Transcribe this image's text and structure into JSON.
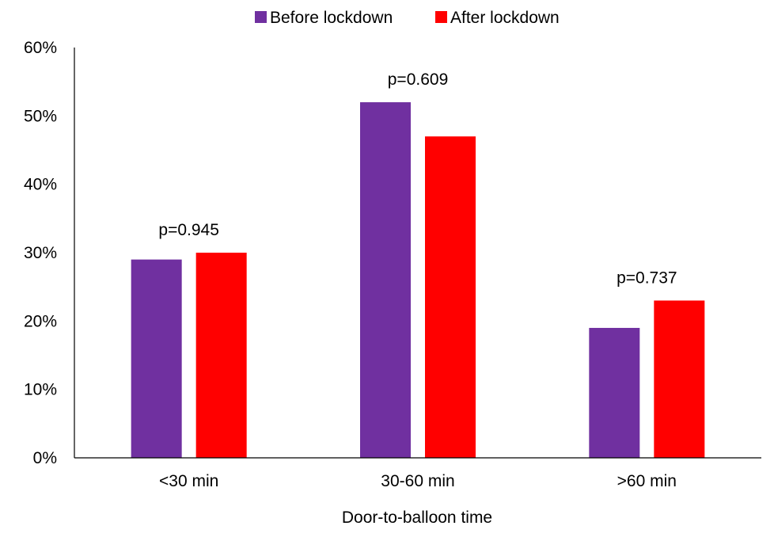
{
  "chart_data": {
    "type": "bar",
    "categories": [
      "<30 min",
      "30-60 min",
      ">60 min"
    ],
    "series": [
      {
        "name": "Before lockdown",
        "color": "#7030a0",
        "values": [
          29,
          52,
          19
        ]
      },
      {
        "name": "After lockdown",
        "color": "#ff0000",
        "values": [
          30,
          47,
          23
        ]
      }
    ],
    "annotations": [
      "p=0.945",
      "p=0.609",
      "p=0.737"
    ],
    "xlabel": "Door-to-balloon time",
    "ylabel": "",
    "ylim": [
      0,
      60
    ],
    "yticks": [
      "0%",
      "10%",
      "20%",
      "30%",
      "40%",
      "50%",
      "60%"
    ],
    "unit": "%",
    "grid": false,
    "legend_position": "top-center"
  }
}
